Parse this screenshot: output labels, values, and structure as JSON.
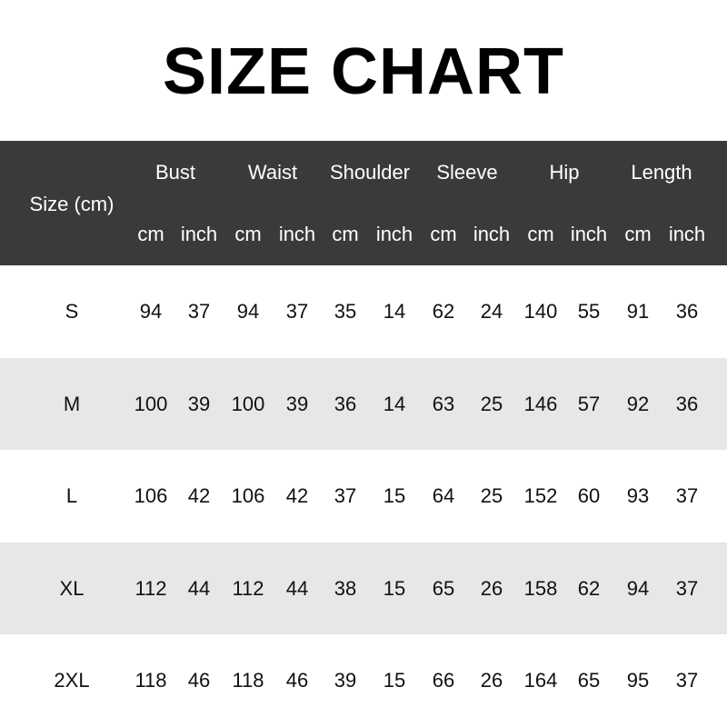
{
  "title": "SIZE CHART",
  "header": {
    "size_label": "Size (cm)",
    "groups": [
      "Bust",
      "Waist",
      "Shoulder",
      "Sleeve",
      "Hip",
      "Length"
    ],
    "unit_cm": "cm",
    "unit_inch": "inch"
  },
  "colors": {
    "header_bg": "#3b3a3a",
    "alt_row_bg": "#e8e6e7"
  },
  "rows": [
    {
      "size": "S",
      "values": [
        "94",
        "37",
        "94",
        "37",
        "35",
        "14",
        "62",
        "24",
        "140",
        "55",
        "91",
        "36"
      ]
    },
    {
      "size": "M",
      "values": [
        "100",
        "39",
        "100",
        "39",
        "36",
        "14",
        "63",
        "25",
        "146",
        "57",
        "92",
        "36"
      ]
    },
    {
      "size": "L",
      "values": [
        "106",
        "42",
        "106",
        "42",
        "37",
        "15",
        "64",
        "25",
        "152",
        "60",
        "93",
        "37"
      ]
    },
    {
      "size": "XL",
      "values": [
        "112",
        "44",
        "112",
        "44",
        "38",
        "15",
        "65",
        "26",
        "158",
        "62",
        "94",
        "37"
      ]
    },
    {
      "size": "2XL",
      "values": [
        "118",
        "46",
        "118",
        "46",
        "39",
        "15",
        "66",
        "26",
        "164",
        "65",
        "95",
        "37"
      ]
    }
  ]
}
